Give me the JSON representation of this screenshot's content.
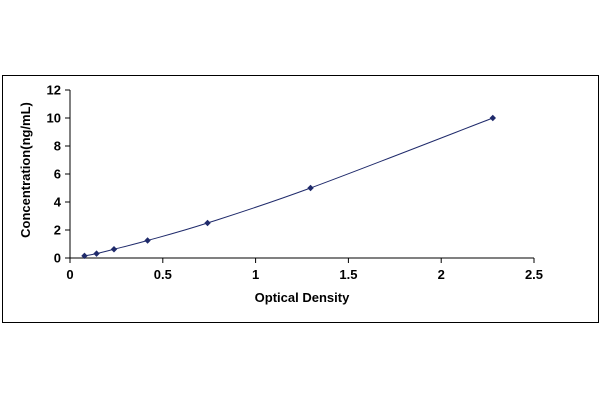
{
  "chart_data": {
    "type": "scatter",
    "title": "",
    "xlabel": "Optical Density",
    "ylabel": "Concentration(ng/mL)",
    "xlim": [
      0,
      2.5
    ],
    "ylim": [
      0,
      12
    ],
    "xticks": [
      "0",
      "0.5",
      "1",
      "1.5",
      "2",
      "2.5"
    ],
    "yticks": [
      "0",
      "2",
      "4",
      "6",
      "8",
      "10",
      "12"
    ],
    "grid": false,
    "legend": "none",
    "trendline": "smooth curve through points",
    "colors": {
      "marker": "#1f2a6b",
      "line": "#1f2a6b",
      "frame": "#000000"
    },
    "series": [
      {
        "x": [
          0.078,
          0.143,
          0.237,
          0.418,
          0.741,
          1.296,
          2.278
        ],
        "y": [
          0.156,
          0.313,
          0.625,
          1.25,
          2.5,
          5,
          10
        ]
      }
    ]
  }
}
